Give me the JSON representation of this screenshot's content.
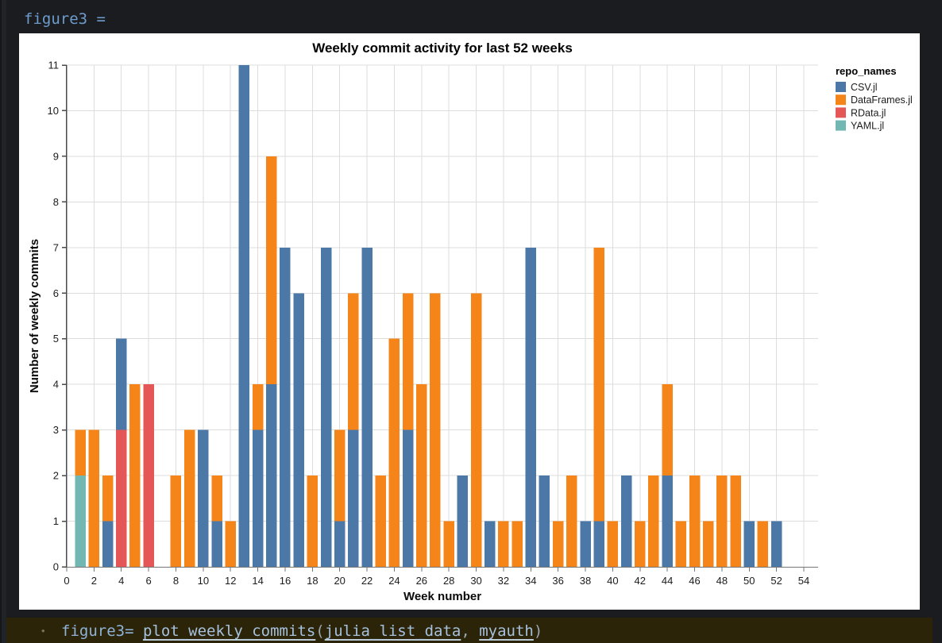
{
  "top_code": {
    "text": "figure3 ="
  },
  "bottom_code": {
    "bullet": "•",
    "assignment": "figure3= ",
    "function_name": "plot_weekly_commits",
    "paren_open": "(",
    "arg1": "julia_list_data",
    "separator": ", ",
    "arg2": "myauth",
    "paren_close": ")"
  },
  "colors": {
    "background": "#1b1c1f",
    "panel": "#ffffff",
    "cell_background": "#2b2408",
    "code_text": "#8fb3d9",
    "gridline": "#dddddd",
    "axis": "#767676"
  },
  "chart_data": {
    "type": "bar",
    "stacked": true,
    "title": "Weekly commit activity for last 52 weeks",
    "xlabel": "Week number",
    "ylabel": "Number of weekly commits",
    "xlim": [
      0,
      55
    ],
    "ylim": [
      0,
      11
    ],
    "grid": true,
    "x_ticks": [
      0,
      2,
      4,
      6,
      8,
      10,
      12,
      14,
      16,
      18,
      20,
      22,
      24,
      26,
      28,
      30,
      32,
      34,
      36,
      38,
      40,
      42,
      44,
      46,
      48,
      50,
      52,
      54
    ],
    "y_ticks": [
      0,
      1,
      2,
      3,
      4,
      5,
      6,
      7,
      8,
      9,
      10,
      11
    ],
    "legend": {
      "title": "repo_names",
      "position": "right",
      "entries": [
        {
          "label": "CSV.jl",
          "color": "#4c78a8"
        },
        {
          "label": "DataFrames.jl",
          "color": "#f58518"
        },
        {
          "label": "RData.jl",
          "color": "#e45756"
        },
        {
          "label": "YAML.jl",
          "color": "#72b7b2"
        }
      ]
    },
    "bars": [
      {
        "week": 1,
        "segments": [
          {
            "repo": "YAML.jl",
            "value": 2
          },
          {
            "repo": "DataFrames.jl",
            "value": 1
          }
        ]
      },
      {
        "week": 2,
        "segments": [
          {
            "repo": "DataFrames.jl",
            "value": 3
          }
        ]
      },
      {
        "week": 3,
        "segments": [
          {
            "repo": "CSV.jl",
            "value": 1
          },
          {
            "repo": "DataFrames.jl",
            "value": 1
          }
        ]
      },
      {
        "week": 4,
        "segments": [
          {
            "repo": "RData.jl",
            "value": 3
          },
          {
            "repo": "CSV.jl",
            "value": 2
          }
        ]
      },
      {
        "week": 5,
        "segments": [
          {
            "repo": "DataFrames.jl",
            "value": 4
          }
        ]
      },
      {
        "week": 6,
        "segments": [
          {
            "repo": "RData.jl",
            "value": 4
          }
        ]
      },
      {
        "week": 8,
        "segments": [
          {
            "repo": "DataFrames.jl",
            "value": 2
          }
        ]
      },
      {
        "week": 9,
        "segments": [
          {
            "repo": "DataFrames.jl",
            "value": 3
          }
        ]
      },
      {
        "week": 10,
        "segments": [
          {
            "repo": "CSV.jl",
            "value": 3
          }
        ]
      },
      {
        "week": 11,
        "segments": [
          {
            "repo": "CSV.jl",
            "value": 1
          },
          {
            "repo": "DataFrames.jl",
            "value": 1
          }
        ]
      },
      {
        "week": 12,
        "segments": [
          {
            "repo": "DataFrames.jl",
            "value": 1
          }
        ]
      },
      {
        "week": 13,
        "segments": [
          {
            "repo": "CSV.jl",
            "value": 11
          }
        ]
      },
      {
        "week": 14,
        "segments": [
          {
            "repo": "CSV.jl",
            "value": 3
          },
          {
            "repo": "DataFrames.jl",
            "value": 1
          }
        ]
      },
      {
        "week": 15,
        "segments": [
          {
            "repo": "CSV.jl",
            "value": 4
          },
          {
            "repo": "DataFrames.jl",
            "value": 5
          }
        ]
      },
      {
        "week": 16,
        "segments": [
          {
            "repo": "CSV.jl",
            "value": 7
          }
        ]
      },
      {
        "week": 17,
        "segments": [
          {
            "repo": "CSV.jl",
            "value": 6
          }
        ]
      },
      {
        "week": 18,
        "segments": [
          {
            "repo": "DataFrames.jl",
            "value": 2
          }
        ]
      },
      {
        "week": 19,
        "segments": [
          {
            "repo": "CSV.jl",
            "value": 7
          }
        ]
      },
      {
        "week": 20,
        "segments": [
          {
            "repo": "CSV.jl",
            "value": 1
          },
          {
            "repo": "DataFrames.jl",
            "value": 2
          }
        ]
      },
      {
        "week": 21,
        "segments": [
          {
            "repo": "CSV.jl",
            "value": 3
          },
          {
            "repo": "DataFrames.jl",
            "value": 3
          }
        ]
      },
      {
        "week": 22,
        "segments": [
          {
            "repo": "CSV.jl",
            "value": 7
          }
        ]
      },
      {
        "week": 23,
        "segments": [
          {
            "repo": "DataFrames.jl",
            "value": 2
          }
        ]
      },
      {
        "week": 24,
        "segments": [
          {
            "repo": "DataFrames.jl",
            "value": 5
          }
        ]
      },
      {
        "week": 25,
        "segments": [
          {
            "repo": "CSV.jl",
            "value": 3
          },
          {
            "repo": "DataFrames.jl",
            "value": 3
          }
        ]
      },
      {
        "week": 26,
        "segments": [
          {
            "repo": "DataFrames.jl",
            "value": 4
          }
        ]
      },
      {
        "week": 27,
        "segments": [
          {
            "repo": "DataFrames.jl",
            "value": 6
          }
        ]
      },
      {
        "week": 28,
        "segments": [
          {
            "repo": "DataFrames.jl",
            "value": 1
          }
        ]
      },
      {
        "week": 29,
        "segments": [
          {
            "repo": "CSV.jl",
            "value": 2
          }
        ]
      },
      {
        "week": 30,
        "segments": [
          {
            "repo": "DataFrames.jl",
            "value": 6
          }
        ]
      },
      {
        "week": 31,
        "segments": [
          {
            "repo": "CSV.jl",
            "value": 1
          }
        ]
      },
      {
        "week": 32,
        "segments": [
          {
            "repo": "DataFrames.jl",
            "value": 1
          }
        ]
      },
      {
        "week": 33,
        "segments": [
          {
            "repo": "DataFrames.jl",
            "value": 1
          }
        ]
      },
      {
        "week": 34,
        "segments": [
          {
            "repo": "CSV.jl",
            "value": 7
          }
        ]
      },
      {
        "week": 35,
        "segments": [
          {
            "repo": "CSV.jl",
            "value": 2
          }
        ]
      },
      {
        "week": 36,
        "segments": [
          {
            "repo": "DataFrames.jl",
            "value": 1
          }
        ]
      },
      {
        "week": 37,
        "segments": [
          {
            "repo": "DataFrames.jl",
            "value": 2
          }
        ]
      },
      {
        "week": 38,
        "segments": [
          {
            "repo": "CSV.jl",
            "value": 1
          }
        ]
      },
      {
        "week": 39,
        "segments": [
          {
            "repo": "CSV.jl",
            "value": 1
          },
          {
            "repo": "DataFrames.jl",
            "value": 6
          }
        ]
      },
      {
        "week": 40,
        "segments": [
          {
            "repo": "DataFrames.jl",
            "value": 1
          }
        ]
      },
      {
        "week": 41,
        "segments": [
          {
            "repo": "CSV.jl",
            "value": 2
          }
        ]
      },
      {
        "week": 42,
        "segments": [
          {
            "repo": "DataFrames.jl",
            "value": 1
          }
        ]
      },
      {
        "week": 43,
        "segments": [
          {
            "repo": "DataFrames.jl",
            "value": 2
          }
        ]
      },
      {
        "week": 44,
        "segments": [
          {
            "repo": "CSV.jl",
            "value": 2
          },
          {
            "repo": "DataFrames.jl",
            "value": 2
          }
        ]
      },
      {
        "week": 45,
        "segments": [
          {
            "repo": "DataFrames.jl",
            "value": 1
          }
        ]
      },
      {
        "week": 46,
        "segments": [
          {
            "repo": "DataFrames.jl",
            "value": 2
          }
        ]
      },
      {
        "week": 47,
        "segments": [
          {
            "repo": "DataFrames.jl",
            "value": 1
          }
        ]
      },
      {
        "week": 48,
        "segments": [
          {
            "repo": "DataFrames.jl",
            "value": 2
          }
        ]
      },
      {
        "week": 49,
        "segments": [
          {
            "repo": "DataFrames.jl",
            "value": 2
          }
        ]
      },
      {
        "week": 50,
        "segments": [
          {
            "repo": "CSV.jl",
            "value": 1
          }
        ]
      },
      {
        "week": 51,
        "segments": [
          {
            "repo": "DataFrames.jl",
            "value": 1
          }
        ]
      },
      {
        "week": 52,
        "segments": [
          {
            "repo": "CSV.jl",
            "value": 1
          }
        ]
      }
    ]
  }
}
